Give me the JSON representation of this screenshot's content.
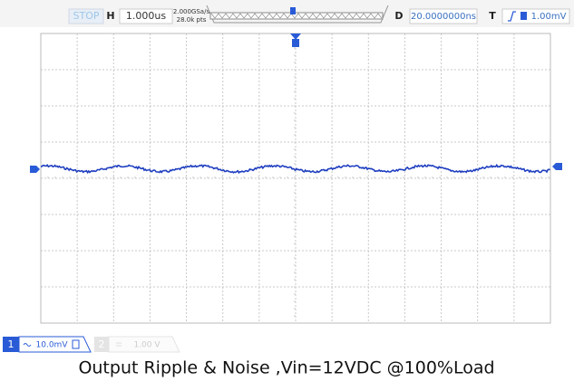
{
  "toolbar": {
    "status": "STOP",
    "h_label": "H",
    "timebase": "1.000us",
    "sample_rate": "2.000GSa/s",
    "points": "28.0k pts",
    "d_label": "D",
    "delay": "20.0000000ns",
    "t_label": "T",
    "trigger_level": "1.00mV"
  },
  "channels": [
    {
      "number": "1",
      "scale": "10.0mV"
    },
    {
      "number": "2",
      "scale": "1.00 V"
    }
  ],
  "caption": "Output Ripple & Noise ,Vin=12VDC @100%Load"
}
